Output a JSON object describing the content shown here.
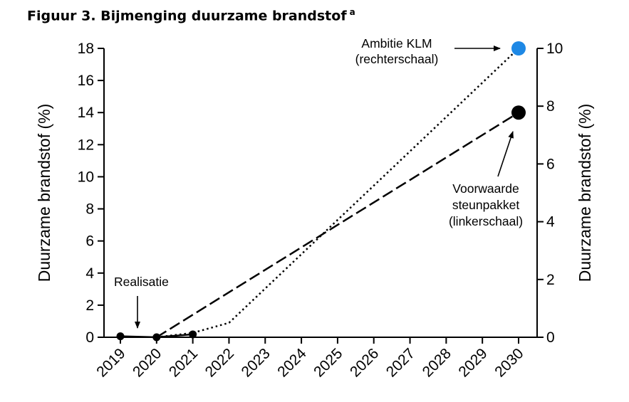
{
  "figure": {
    "title": "Figuur 3.  Bijmenging duurzame brandstof",
    "title_superscript": "a"
  },
  "chart_data": {
    "type": "line",
    "title": "Figuur 3.  Bijmenging duurzame brandstof",
    "x": [
      "2019",
      "2020",
      "2021",
      "2022",
      "2023",
      "2024",
      "2025",
      "2026",
      "2027",
      "2028",
      "2029",
      "2030"
    ],
    "left_axis": {
      "label": "Duurzame brandstof (%)",
      "ylim": [
        0,
        18
      ],
      "ticks": [
        "0",
        "2",
        "4",
        "6",
        "8",
        "10",
        "12",
        "14",
        "16",
        "18"
      ]
    },
    "right_axis": {
      "label": "Duurzame brandstof (%)",
      "ylim": [
        0,
        10
      ],
      "ticks": [
        "0",
        "2",
        "4",
        "6",
        "8",
        "10"
      ]
    },
    "series": [
      {
        "id": "realisatie",
        "axis": "left",
        "style": "solid",
        "color": "#000000",
        "points": [
          {
            "x": 2019,
            "y": 0.06
          },
          {
            "x": 2020,
            "y": 0.0
          },
          {
            "x": 2021,
            "y": 0.18
          }
        ]
      },
      {
        "id": "voorwaarde",
        "axis": "left",
        "style": "dashed",
        "color": "#000000",
        "points": [
          {
            "x": 2020,
            "y": 0.0
          },
          {
            "x": 2030,
            "y": 14.0
          }
        ]
      },
      {
        "id": "ambitie",
        "axis": "right",
        "style": "dotted",
        "color": "#000000",
        "marker_color": "#1e88e5",
        "points": [
          {
            "x": 2020,
            "y": 0.0
          },
          {
            "x": 2021,
            "y": 0.15
          },
          {
            "x": 2022,
            "y": 0.5
          },
          {
            "x": 2030,
            "y": 10.0
          }
        ]
      }
    ],
    "annotations": [
      {
        "id": "realisatie",
        "lines": [
          "Realisatie"
        ]
      },
      {
        "id": "ambitie",
        "lines": [
          "Ambitie KLM",
          "(rechterschaal)"
        ]
      },
      {
        "id": "voorwaarde",
        "lines": [
          "Voorwaarde",
          "steunpakket",
          "(linkerschaal)"
        ]
      }
    ]
  }
}
